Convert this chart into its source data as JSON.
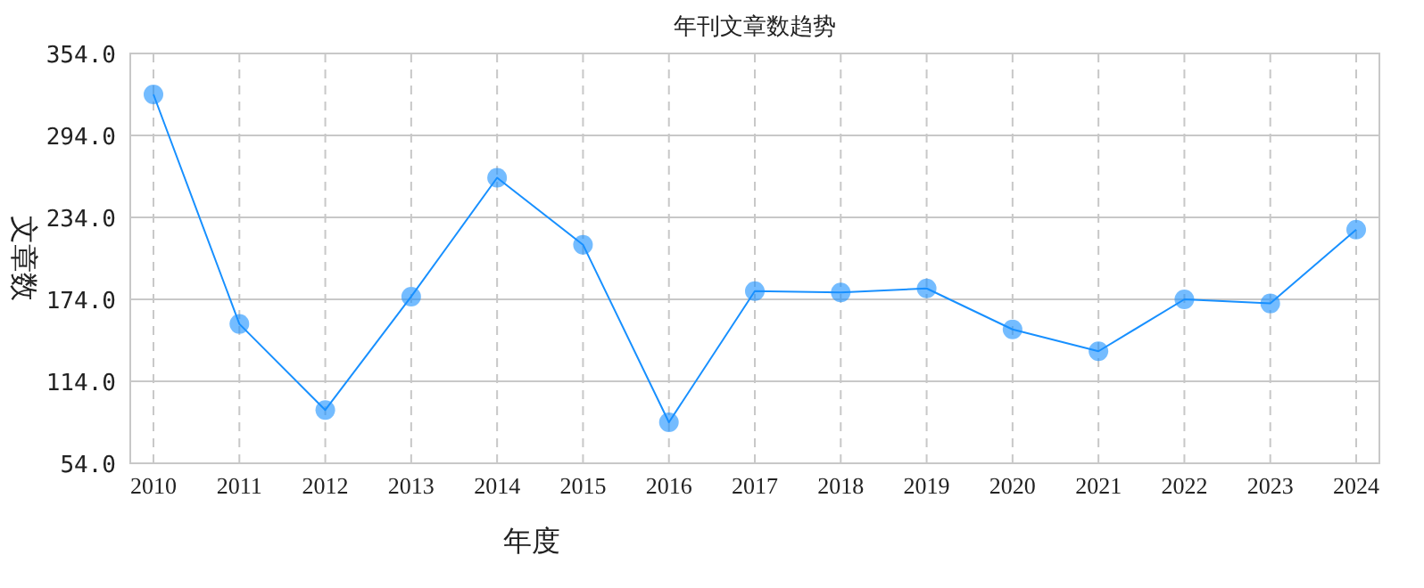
{
  "chart_data": {
    "type": "line",
    "title": "年刊文章数趋势",
    "xlabel": "年度",
    "ylabel": "文章数",
    "categories": [
      "2010",
      "2011",
      "2012",
      "2013",
      "2014",
      "2015",
      "2016",
      "2017",
      "2018",
      "2019",
      "2020",
      "2021",
      "2022",
      "2023",
      "2024"
    ],
    "series": [
      {
        "color": "#1890ff",
        "values": [
          324,
          156,
          93,
          176,
          263,
          214,
          84,
          180,
          179,
          182,
          152,
          136,
          174,
          171,
          225
        ]
      }
    ],
    "ylim": [
      54,
      354
    ],
    "yticks": [
      {
        "value": 54,
        "label": "54.0"
      },
      {
        "value": 114,
        "label": "114.0"
      },
      {
        "value": 174,
        "label": "174.0"
      },
      {
        "value": 234,
        "label": "234.0"
      },
      {
        "value": 294,
        "label": "294.0"
      },
      {
        "value": 354,
        "label": "354.0"
      }
    ],
    "grid": true,
    "marker": "circle",
    "line_style": "solid"
  }
}
